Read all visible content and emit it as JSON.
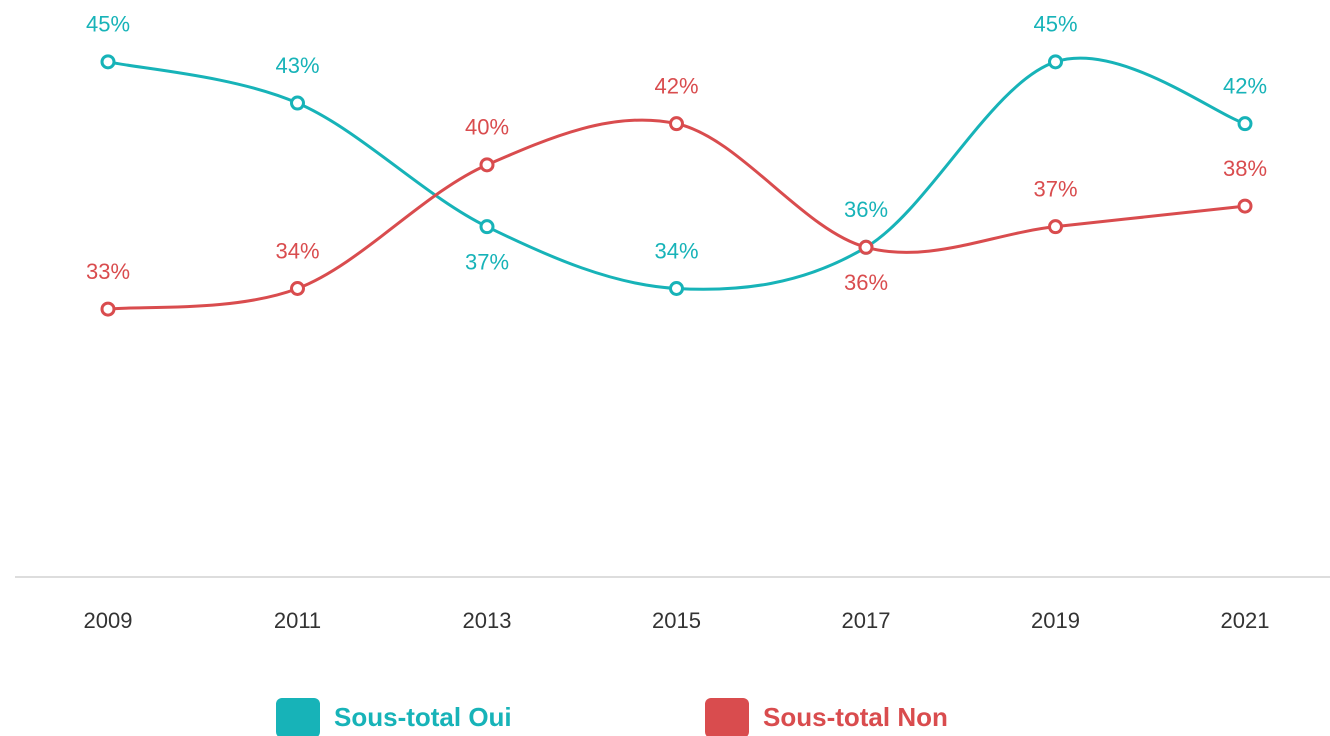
{
  "chart_data": {
    "type": "line",
    "categories": [
      "2009",
      "2011",
      "2013",
      "2015",
      "2017",
      "2019",
      "2021"
    ],
    "series": [
      {
        "name": "Sous-total Oui",
        "color": "#17b3b8",
        "values": [
          45,
          43,
          37,
          34,
          36,
          45,
          42
        ],
        "value_labels": [
          "45%",
          "43%",
          "37%",
          "34%",
          "36%",
          "45%",
          "42%"
        ]
      },
      {
        "name": "Sous-total Non",
        "color": "#d94c4e",
        "values": [
          33,
          34,
          40,
          42,
          36,
          37,
          38
        ],
        "value_labels": [
          "33%",
          "34%",
          "40%",
          "42%",
          "36%",
          "37%",
          "38%"
        ]
      }
    ],
    "ylim": [
      20,
      48
    ]
  }
}
